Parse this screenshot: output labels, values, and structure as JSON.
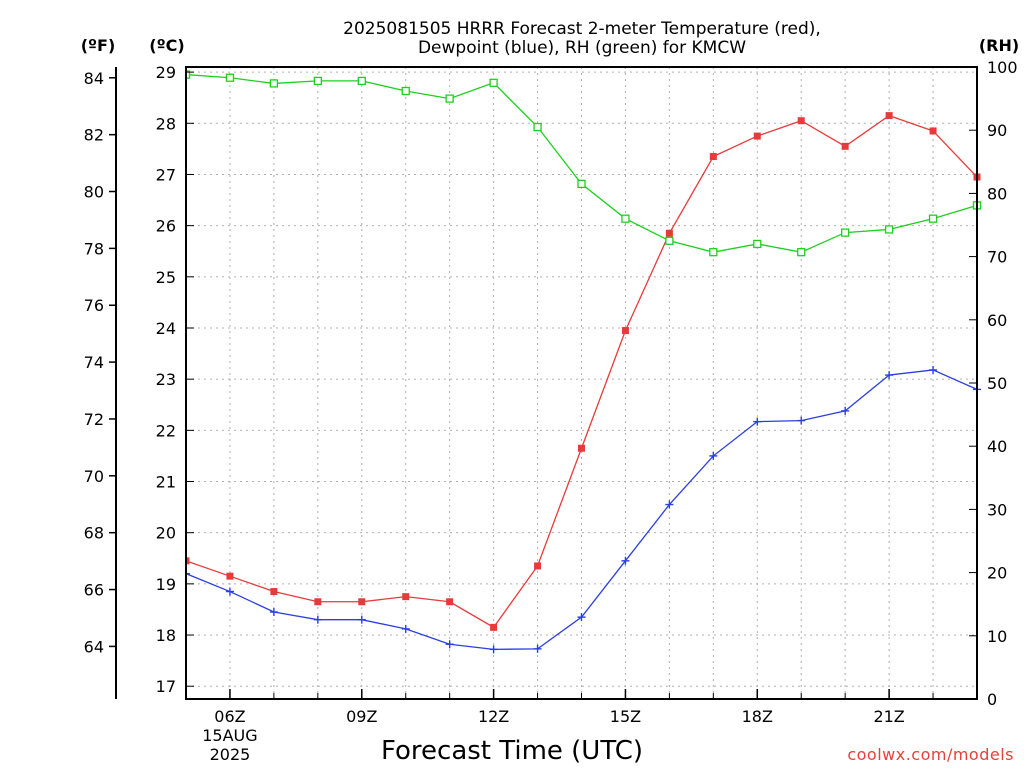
{
  "page": {
    "title_line1": "2025081505 HRRR Forecast 2-meter Temperature (red),",
    "title_line2": "Dewpoint (blue), RH (green) for KMCW",
    "credit": "coolwx.com/models"
  },
  "chart_data": {
    "type": "line",
    "title": "2025081505 HRRR Forecast 2-meter Temperature (red), Dewpoint (blue), RH (green) for KMCW",
    "xlabel": "Forecast Time (UTC)",
    "x_unit": "hour UTC on 15 AUG 2025",
    "x": [
      5,
      6,
      7,
      8,
      9,
      10,
      11,
      12,
      13,
      14,
      15,
      16,
      17,
      18,
      19,
      20,
      21,
      22,
      23
    ],
    "xlim": [
      5,
      23
    ],
    "x_ticks": [
      {
        "x": 6,
        "label": "06Z",
        "sub1": "15AUG",
        "sub2": "2025"
      },
      {
        "x": 9,
        "label": "09Z",
        "sub1": "",
        "sub2": ""
      },
      {
        "x": 12,
        "label": "12Z",
        "sub1": "",
        "sub2": ""
      },
      {
        "x": 15,
        "label": "15Z",
        "sub1": "",
        "sub2": ""
      },
      {
        "x": 18,
        "label": "18Z",
        "sub1": "",
        "sub2": ""
      },
      {
        "x": 21,
        "label": "21Z",
        "sub1": "",
        "sub2": ""
      }
    ],
    "axes": {
      "left_f": {
        "unit_label": "(ºF)",
        "ticks": [
          "64",
          "66",
          "68",
          "70",
          "72",
          "74",
          "76",
          "78",
          "80",
          "82",
          "84"
        ]
      },
      "left_c": {
        "unit_label": "(ºC)",
        "ylim": [
          16.75,
          29.1
        ],
        "ticks": [
          "17",
          "18",
          "19",
          "20",
          "21",
          "22",
          "23",
          "24",
          "25",
          "26",
          "27",
          "28",
          "29"
        ]
      },
      "right_rh": {
        "unit_label": "(RH)",
        "ylim": [
          0,
          100
        ],
        "ticks": [
          "0",
          "10",
          "20",
          "30",
          "40",
          "50",
          "60",
          "70",
          "80",
          "90",
          "100"
        ]
      }
    },
    "grid": true,
    "series": [
      {
        "name": "Temperature (red)",
        "axis": "left_c",
        "color": "#e83a3a",
        "marker": "filled-square",
        "values": [
          19.45,
          19.15,
          18.85,
          18.65,
          18.65,
          18.75,
          18.65,
          18.15,
          19.35,
          21.65,
          23.95,
          25.85,
          27.35,
          27.75,
          28.05,
          27.55,
          28.15,
          27.85,
          26.95
        ]
      },
      {
        "name": "Dewpoint (blue)",
        "axis": "left_c",
        "color": "#2b3fe0",
        "marker": "plus",
        "values": [
          19.2,
          18.85,
          18.45,
          18.3,
          18.3,
          18.12,
          17.82,
          17.72,
          17.73,
          18.35,
          19.45,
          20.55,
          21.5,
          22.17,
          22.19,
          22.38,
          23.08,
          23.18,
          22.8
        ]
      },
      {
        "name": "RH (green)",
        "axis": "right_rh",
        "color": "#1ed01e",
        "marker": "open-square",
        "values": [
          98.8,
          98.3,
          97.4,
          97.8,
          97.8,
          96.2,
          95.0,
          97.5,
          90.5,
          81.5,
          76.0,
          72.5,
          70.7,
          72.0,
          70.7,
          73.8,
          74.3,
          76.0,
          78.1
        ]
      }
    ]
  }
}
